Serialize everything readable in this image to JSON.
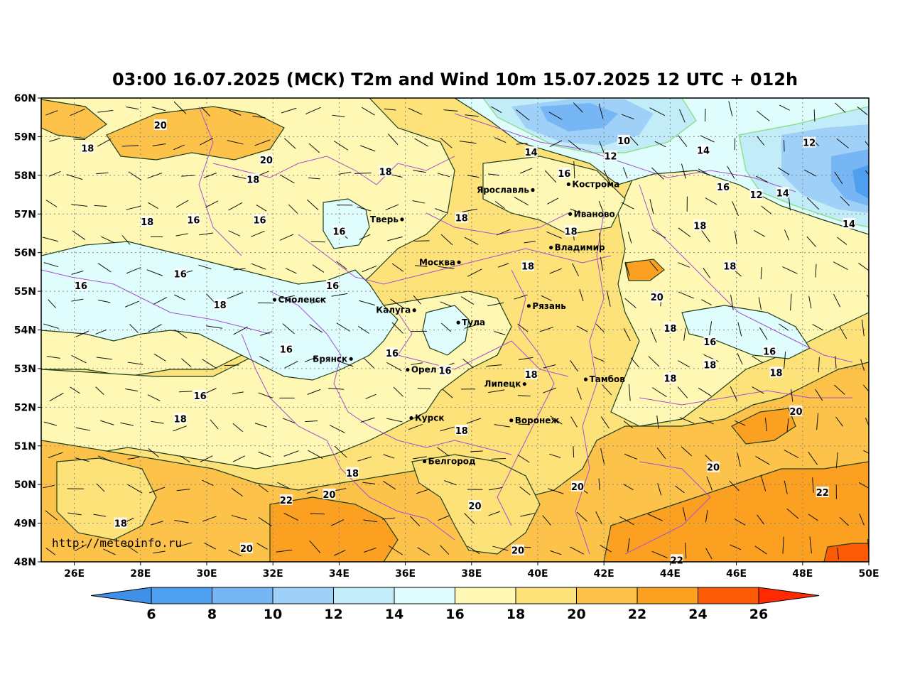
{
  "title": "03:00 16.07.2025 (МСК) T2m and Wind 10m 15.07.2025 12 UTC + 012h",
  "credit": "http://meteoinfo.ru",
  "lat_labels": [
    "60N",
    "59N",
    "58N",
    "57N",
    "56N",
    "55N",
    "54N",
    "53N",
    "52N",
    "51N",
    "50N",
    "49N",
    "48N"
  ],
  "lon_labels": [
    "26E",
    "28E",
    "30E",
    "32E",
    "34E",
    "36E",
    "38E",
    "40E",
    "42E",
    "44E",
    "46E",
    "48E",
    "50E"
  ],
  "colorbar": {
    "ticks": [
      "6",
      "8",
      "10",
      "12",
      "14",
      "16",
      "18",
      "20",
      "22",
      "24",
      "26"
    ],
    "colors": {
      "below6": "#3f90e8",
      "c6_8": "#4e9ff0",
      "c8_10": "#76b6f5",
      "c10_12": "#9fd0f8",
      "c12_14": "#c2ecf8",
      "c14_16": "#e0fdfd",
      "c16_18": "#fff8b4",
      "c18_20": "#fde27a",
      "c20_22": "#fcc24a",
      "c22_24": "#fba020",
      "c24_26": "#fd5a05",
      "above26": "#ff2a00"
    }
  },
  "cities": [
    {
      "name": "Ярославль",
      "lon": 39.85,
      "lat": 57.62
    },
    {
      "name": "Кострома",
      "lon": 40.93,
      "lat": 57.77
    },
    {
      "name": "Иваново",
      "lon": 40.98,
      "lat": 57.0
    },
    {
      "name": "Тверь",
      "lon": 35.9,
      "lat": 56.86
    },
    {
      "name": "Владимир",
      "lon": 40.4,
      "lat": 56.13
    },
    {
      "name": "Москва",
      "lon": 37.62,
      "lat": 55.75
    },
    {
      "name": "Смоленск",
      "lon": 32.05,
      "lat": 54.78
    },
    {
      "name": "Калуга",
      "lon": 36.27,
      "lat": 54.51
    },
    {
      "name": "Рязань",
      "lon": 39.73,
      "lat": 54.62
    },
    {
      "name": "Тула",
      "lon": 37.6,
      "lat": 54.19
    },
    {
      "name": "Брянск",
      "lon": 34.36,
      "lat": 53.25
    },
    {
      "name": "Орел",
      "lon": 36.07,
      "lat": 52.97
    },
    {
      "name": "Липецк",
      "lon": 39.6,
      "lat": 52.6
    },
    {
      "name": "Тамбов",
      "lon": 41.45,
      "lat": 52.72
    },
    {
      "name": "Курск",
      "lon": 36.18,
      "lat": 51.72
    },
    {
      "name": "Воронеж",
      "lon": 39.2,
      "lat": 51.66
    },
    {
      "name": "Белгород",
      "lon": 36.58,
      "lat": 50.6
    }
  ],
  "isotherm_labels": [
    {
      "t": "20",
      "lon": 28.6,
      "lat": 59.3
    },
    {
      "t": "18",
      "lon": 26.4,
      "lat": 58.7
    },
    {
      "t": "20",
      "lon": 31.8,
      "lat": 58.4
    },
    {
      "t": "18",
      "lon": 31.4,
      "lat": 57.9
    },
    {
      "t": "18",
      "lon": 35.4,
      "lat": 58.1
    },
    {
      "t": "14",
      "lon": 39.8,
      "lat": 58.6
    },
    {
      "t": "10",
      "lon": 42.6,
      "lat": 58.9
    },
    {
      "t": "12",
      "lon": 42.2,
      "lat": 58.5
    },
    {
      "t": "14",
      "lon": 45.0,
      "lat": 58.65
    },
    {
      "t": "12",
      "lon": 48.2,
      "lat": 58.85
    },
    {
      "t": "16",
      "lon": 40.8,
      "lat": 58.05
    },
    {
      "t": "16",
      "lon": 45.6,
      "lat": 57.7
    },
    {
      "t": "12",
      "lon": 46.6,
      "lat": 57.5
    },
    {
      "t": "14",
      "lon": 47.4,
      "lat": 57.55
    },
    {
      "t": "14",
      "lon": 49.4,
      "lat": 56.75
    },
    {
      "t": "18",
      "lon": 28.2,
      "lat": 56.8
    },
    {
      "t": "16",
      "lon": 29.6,
      "lat": 56.85
    },
    {
      "t": "16",
      "lon": 31.6,
      "lat": 56.85
    },
    {
      "t": "16",
      "lon": 34.0,
      "lat": 56.55
    },
    {
      "t": "18",
      "lon": 37.7,
      "lat": 56.9
    },
    {
      "t": "18",
      "lon": 41.0,
      "lat": 56.55
    },
    {
      "t": "18",
      "lon": 44.9,
      "lat": 56.7
    },
    {
      "t": "18",
      "lon": 39.7,
      "lat": 55.65
    },
    {
      "t": "18",
      "lon": 45.8,
      "lat": 55.65
    },
    {
      "t": "16",
      "lon": 29.2,
      "lat": 55.45
    },
    {
      "t": "16",
      "lon": 26.2,
      "lat": 55.15
    },
    {
      "t": "16",
      "lon": 33.8,
      "lat": 55.15
    },
    {
      "t": "18",
      "lon": 30.4,
      "lat": 54.65
    },
    {
      "t": "20",
      "lon": 43.6,
      "lat": 54.85
    },
    {
      "t": "18",
      "lon": 44.0,
      "lat": 54.05
    },
    {
      "t": "16",
      "lon": 45.2,
      "lat": 53.7
    },
    {
      "t": "16",
      "lon": 47.0,
      "lat": 53.45
    },
    {
      "t": "16",
      "lon": 32.4,
      "lat": 53.5
    },
    {
      "t": "16",
      "lon": 35.6,
      "lat": 53.4
    },
    {
      "t": "16",
      "lon": 37.2,
      "lat": 52.95
    },
    {
      "t": "18",
      "lon": 39.8,
      "lat": 52.85
    },
    {
      "t": "18",
      "lon": 44.0,
      "lat": 52.75
    },
    {
      "t": "18",
      "lon": 45.2,
      "lat": 53.1
    },
    {
      "t": "18",
      "lon": 47.2,
      "lat": 52.9
    },
    {
      "t": "16",
      "lon": 29.8,
      "lat": 52.3
    },
    {
      "t": "18",
      "lon": 29.2,
      "lat": 51.7
    },
    {
      "t": "20",
      "lon": 47.8,
      "lat": 51.9
    },
    {
      "t": "18",
      "lon": 37.7,
      "lat": 51.4
    },
    {
      "t": "18",
      "lon": 34.4,
      "lat": 50.3
    },
    {
      "t": "20",
      "lon": 45.3,
      "lat": 50.45
    },
    {
      "t": "20",
      "lon": 41.2,
      "lat": 49.95
    },
    {
      "t": "22",
      "lon": 48.6,
      "lat": 49.8
    },
    {
      "t": "22",
      "lon": 32.4,
      "lat": 49.6
    },
    {
      "t": "20",
      "lon": 33.7,
      "lat": 49.75
    },
    {
      "t": "20",
      "lon": 38.1,
      "lat": 49.45
    },
    {
      "t": "18",
      "lon": 27.4,
      "lat": 49.0
    },
    {
      "t": "20",
      "lon": 31.2,
      "lat": 48.35
    },
    {
      "t": "20",
      "lon": 39.4,
      "lat": 48.3
    },
    {
      "t": "22",
      "lon": 44.2,
      "lat": 48.05
    }
  ]
}
